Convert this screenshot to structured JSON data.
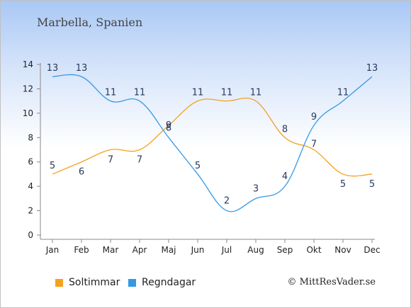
{
  "header": {
    "title": "Marbella, Spanien"
  },
  "footer": {
    "copyright": "© MittResVader.se"
  },
  "colors": {
    "sun": "#f5a020",
    "rain": "#3399e6",
    "axis": "#888888"
  },
  "chart_data": {
    "type": "line",
    "title": "Marbella, Spanien",
    "categories": [
      "Jan",
      "Feb",
      "Mar",
      "Apr",
      "Maj",
      "Jun",
      "Jul",
      "Aug",
      "Sep",
      "Okt",
      "Nov",
      "Dec"
    ],
    "ylim": [
      0,
      14
    ],
    "yticks": [
      0,
      2,
      4,
      6,
      8,
      10,
      12,
      14
    ],
    "grid": false,
    "legend_position": "bottom-left",
    "series": [
      {
        "name": "Soltimmar",
        "color": "#f5a020",
        "values": [
          5,
          6,
          7,
          7,
          9,
          11,
          11,
          11,
          8,
          7,
          5,
          5
        ]
      },
      {
        "name": "Regndagar",
        "color": "#3399e6",
        "values": [
          13,
          13,
          11,
          11,
          8,
          5,
          2,
          3,
          4,
          9,
          11,
          13
        ]
      }
    ]
  }
}
